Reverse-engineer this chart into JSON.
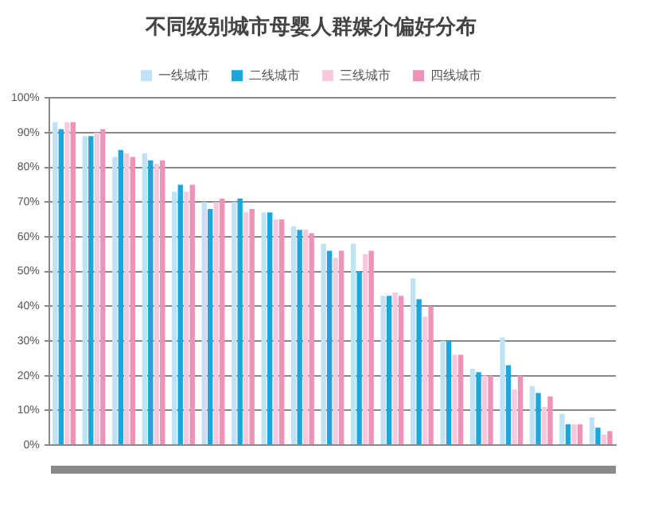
{
  "chart_data": {
    "type": "bar",
    "title": "不同级别城市母婴人群媒介偏好分布",
    "categories": [
      null,
      null,
      null,
      null,
      null,
      null,
      null,
      null,
      null,
      null,
      null,
      null,
      null,
      null,
      null,
      null,
      null,
      null,
      null
    ],
    "series": [
      {
        "name": "一线城市",
        "color": "#bfe3f5",
        "values": [
          93,
          89,
          83,
          84,
          73,
          70,
          70,
          67,
          63,
          58,
          58,
          43,
          48,
          30,
          22,
          31,
          17,
          9,
          8
        ]
      },
      {
        "name": "二线城市",
        "color": "#1aa7dc",
        "values": [
          91,
          89,
          85,
          82,
          75,
          68,
          71,
          67,
          62,
          56,
          50,
          43,
          42,
          30,
          21,
          23,
          15,
          6,
          5
        ]
      },
      {
        "name": "三线城市",
        "color": "#f6c9dc",
        "values": [
          93,
          90,
          84,
          81,
          73,
          70,
          67,
          65,
          62,
          54,
          55,
          44,
          37,
          26,
          20,
          16,
          11,
          6,
          3
        ]
      },
      {
        "name": "四线城市",
        "color": "#ec93b7",
        "values": [
          93,
          91,
          83,
          82,
          75,
          71,
          68,
          65,
          61,
          56,
          56,
          43,
          40,
          26,
          20,
          20,
          14,
          6,
          4
        ]
      }
    ],
    "ylim": [
      0,
      100
    ],
    "yticks": [
      {
        "value": 0,
        "label": "0%"
      },
      {
        "value": 10,
        "label": "10%"
      },
      {
        "value": 20,
        "label": "20%"
      },
      {
        "value": 30,
        "label": "30%"
      },
      {
        "value": 40,
        "label": "40%"
      },
      {
        "value": 50,
        "label": "50%"
      },
      {
        "value": 60,
        "label": "60%"
      },
      {
        "value": 70,
        "label": "70%"
      },
      {
        "value": 80,
        "label": "80%"
      },
      {
        "value": 90,
        "label": "90%"
      },
      {
        "value": 100,
        "label": "100%"
      }
    ],
    "grid": "y",
    "legend": "top"
  }
}
